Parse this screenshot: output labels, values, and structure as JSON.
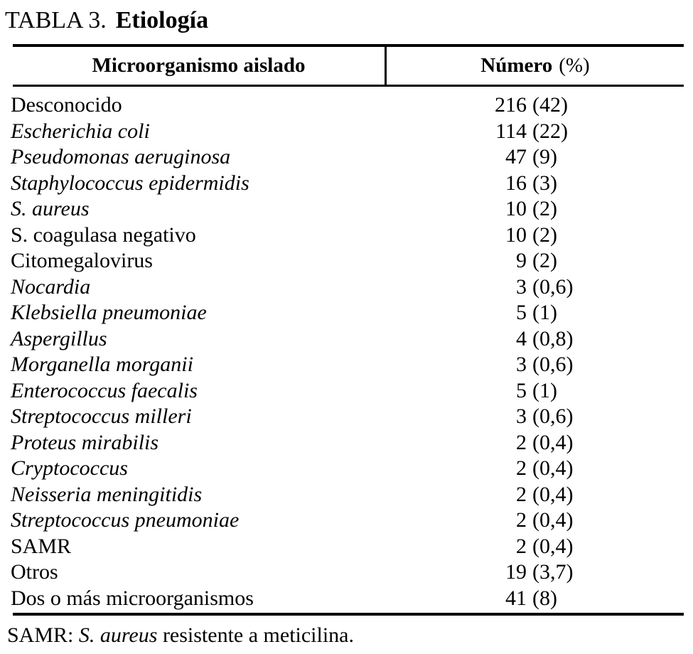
{
  "page": {
    "background_color": "#ffffff",
    "text_color": "#000000"
  },
  "title": {
    "label": "TABLA 3.",
    "subject": "Etiología"
  },
  "table": {
    "header": {
      "organism": "Microorganismo aislado",
      "number_label": "Número",
      "number_unit": "(%)"
    },
    "rows": [
      {
        "name": "Desconocido",
        "italic": false,
        "count": "216",
        "percent": "(42)"
      },
      {
        "name": "Escherichia coli",
        "italic": true,
        "count": "114",
        "percent": "(22)"
      },
      {
        "name": "Pseudomonas aeruginosa",
        "italic": true,
        "count": "47",
        "percent": "(9)"
      },
      {
        "name": "Staphylococcus epidermidis",
        "italic": true,
        "count": "16",
        "percent": "(3)"
      },
      {
        "name": "S. aureus",
        "italic": true,
        "count": "10",
        "percent": "(2)"
      },
      {
        "name": "S. coagulasa negativo",
        "italic": false,
        "count": "10",
        "percent": "(2)"
      },
      {
        "name": "Citomegalovirus",
        "italic": false,
        "count": "9",
        "percent": "(2)"
      },
      {
        "name": "Nocardia",
        "italic": true,
        "count": "3",
        "percent": "(0,6)"
      },
      {
        "name": "Klebsiella pneumoniae",
        "italic": true,
        "count": "5",
        "percent": "(1)"
      },
      {
        "name": "Aspergillus",
        "italic": true,
        "count": "4",
        "percent": "(0,8)"
      },
      {
        "name": "Morganella morganii",
        "italic": true,
        "count": "3",
        "percent": "(0,6)"
      },
      {
        "name": "Enterococcus faecalis",
        "italic": true,
        "count": "5",
        "percent": "(1)"
      },
      {
        "name": "Streptococcus milleri",
        "italic": true,
        "count": "3",
        "percent": "(0,6)"
      },
      {
        "name": "Proteus mirabilis",
        "italic": true,
        "count": "2",
        "percent": "(0,4)"
      },
      {
        "name": "Cryptococcus",
        "italic": true,
        "count": "2",
        "percent": "(0,4)"
      },
      {
        "name": "Neisseria meningitidis",
        "italic": true,
        "count": "2",
        "percent": "(0,4)"
      },
      {
        "name": "Streptococcus pneumoniae",
        "italic": true,
        "count": "2",
        "percent": "(0,4)"
      },
      {
        "name": "SAMR",
        "italic": false,
        "count": "2",
        "percent": "(0,4)"
      },
      {
        "name": "Otros",
        "italic": false,
        "count": "19",
        "percent": "(3,7)"
      },
      {
        "name": "Dos o más microorganismos",
        "italic": false,
        "count": "41",
        "percent": "(8)"
      }
    ]
  },
  "footnote": {
    "prefix": "SAMR: ",
    "italic_term": "S. aureus",
    "suffix": " resistente a meticilina."
  }
}
